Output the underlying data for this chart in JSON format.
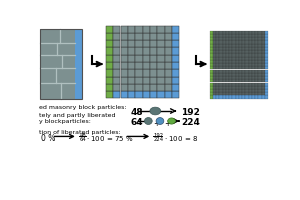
{
  "gray": "#7d9090",
  "blue": "#5b9bd5",
  "green": "#70ad47",
  "dark_gray": "#556060",
  "mortar": "#b0c0c0",
  "label1": "ed masonry block particles:",
  "label2a": "tely and partly liberated",
  "label2b": "y blockparticles:",
  "label3": "tion of liberated particles:",
  "row1_left": "48",
  "row1_right": "192",
  "row2_left": "64",
  "row2_right": "224"
}
